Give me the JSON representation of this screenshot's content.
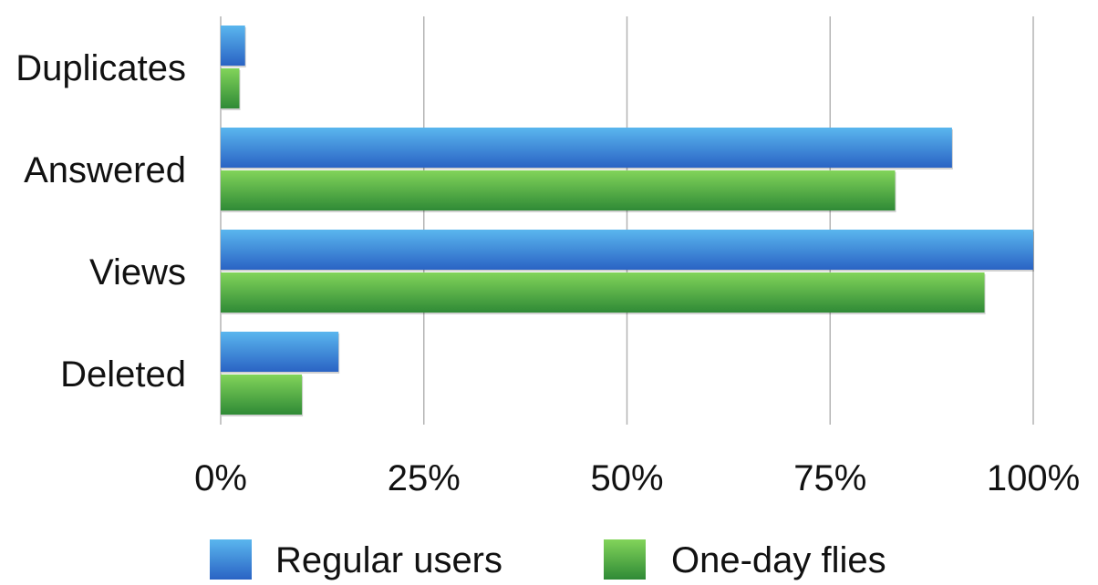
{
  "chart_data": {
    "type": "bar",
    "orientation": "horizontal",
    "categories": [
      "Duplicates",
      "Answered",
      "Views",
      "Deleted"
    ],
    "series": [
      {
        "name": "Regular users",
        "values": [
          3,
          90,
          100,
          14.5
        ]
      },
      {
        "name": "One-day flies",
        "values": [
          2.3,
          83,
          94,
          10
        ]
      }
    ],
    "xlim": [
      0,
      100
    ],
    "xticks": [
      "0%",
      "25%",
      "50%",
      "75%",
      "100%"
    ],
    "grid": "vertical",
    "legend_position": "bottom",
    "title": "",
    "xlabel": "",
    "ylabel": "",
    "colors": {
      "series0_top": "#5ab6ee",
      "series0_bottom": "#2a63c4",
      "series1_top": "#82d45a",
      "series1_bottom": "#2f8a36",
      "grid": "#b4b4b4"
    }
  }
}
